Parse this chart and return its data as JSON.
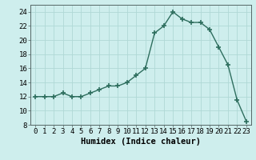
{
  "x": [
    0,
    1,
    2,
    3,
    4,
    5,
    6,
    7,
    8,
    9,
    10,
    11,
    12,
    13,
    14,
    15,
    16,
    17,
    18,
    19,
    20,
    21,
    22,
    23
  ],
  "y": [
    12,
    12,
    12,
    12.5,
    12,
    12,
    12.5,
    13,
    13.5,
    13.5,
    14,
    15,
    16,
    21,
    22,
    24,
    23,
    22.5,
    22.5,
    21.5,
    19,
    16.5,
    11.5,
    8.5
  ],
  "line_color": "#2e6e5e",
  "marker_color": "#2e6e5e",
  "bg_color": "#ceeeed",
  "grid_color": "#b0d8d6",
  "xlabel": "Humidex (Indice chaleur)",
  "ylim": [
    8,
    25
  ],
  "yticks": [
    8,
    10,
    12,
    14,
    16,
    18,
    20,
    22,
    24
  ],
  "xticks": [
    0,
    1,
    2,
    3,
    4,
    5,
    6,
    7,
    8,
    9,
    10,
    11,
    12,
    13,
    14,
    15,
    16,
    17,
    18,
    19,
    20,
    21,
    22,
    23
  ],
  "tick_fontsize": 6.5,
  "label_fontsize": 7.5
}
